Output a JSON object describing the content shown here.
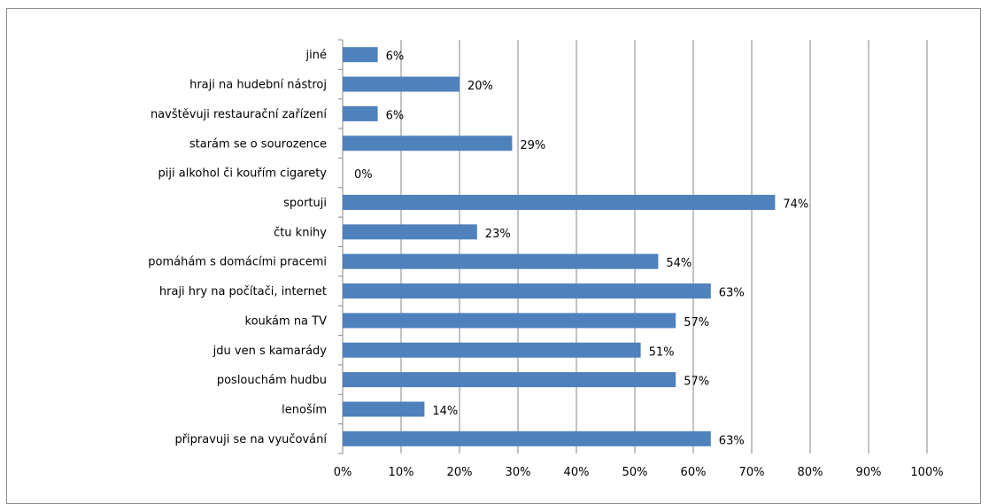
{
  "chart_data": {
    "type": "bar",
    "orientation": "horizontal",
    "title": "",
    "xlabel": "",
    "ylabel": "",
    "categories": [
      "jiné",
      "hraji na hudební nástroj",
      "navštěvuji restaurační zařízení",
      "starám se o sourozence",
      "piji alkohol či kouřím cigarety",
      "sportuji",
      "čtu knihy",
      "pomáhám s domácími pracemi",
      "hraji hry na počítači, internet",
      "koukám na TV",
      "jdu ven s kamarády",
      "poslouchám hudbu",
      "lenoším",
      "připravuji se na vyučování"
    ],
    "values": [
      6,
      20,
      6,
      29,
      0,
      74,
      23,
      54,
      63,
      57,
      51,
      57,
      14,
      63
    ],
    "data_labels": [
      "6%",
      "20%",
      "6%",
      "29%",
      "0%",
      "74%",
      "23%",
      "54%",
      "63%",
      "57%",
      "51%",
      "57%",
      "14%",
      "63%"
    ],
    "xlim": [
      0,
      100
    ],
    "x_ticks": [
      "0%",
      "10%",
      "20%",
      "30%",
      "40%",
      "50%",
      "60%",
      "70%",
      "80%",
      "90%",
      "100%"
    ],
    "grid": true,
    "legend": "none",
    "bar_color": "#4f81bd",
    "gridline_color": "#878787"
  }
}
